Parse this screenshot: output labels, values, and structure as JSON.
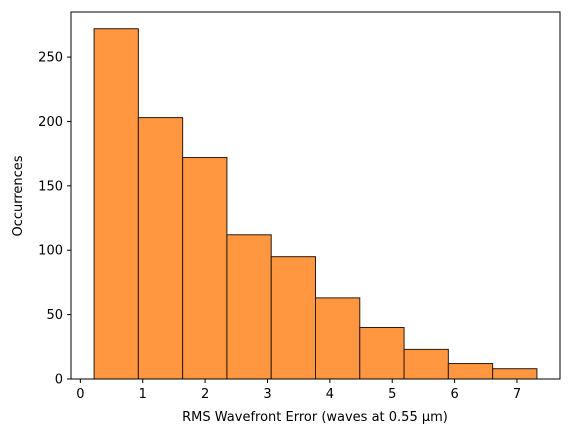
{
  "chart_data": {
    "type": "bar",
    "title": "",
    "xlabel": "RMS Wavefront Error (waves at 0.55 µm)",
    "ylabel": "Occurrences",
    "bin_edges": [
      0.22,
      0.93,
      1.64,
      2.35,
      3.06,
      3.77,
      4.48,
      5.19,
      5.9,
      6.61,
      7.32
    ],
    "values": [
      272,
      203,
      172,
      112,
      95,
      63,
      40,
      23,
      12,
      8
    ],
    "xlim": [
      -0.15,
      7.69
    ],
    "ylim": [
      0,
      285
    ],
    "xticks": [
      0,
      1,
      2,
      3,
      4,
      5,
      6,
      7
    ],
    "yticks": [
      0,
      50,
      100,
      150,
      200,
      250
    ],
    "xtick_labels": [
      "0",
      "1",
      "2",
      "3",
      "4",
      "5",
      "6",
      "7"
    ],
    "ytick_labels": [
      "0",
      "50",
      "100",
      "150",
      "200",
      "250"
    ],
    "bar_color": "#ff9640",
    "edge_color": "#2a1a10",
    "grid": false,
    "legend": "none"
  }
}
